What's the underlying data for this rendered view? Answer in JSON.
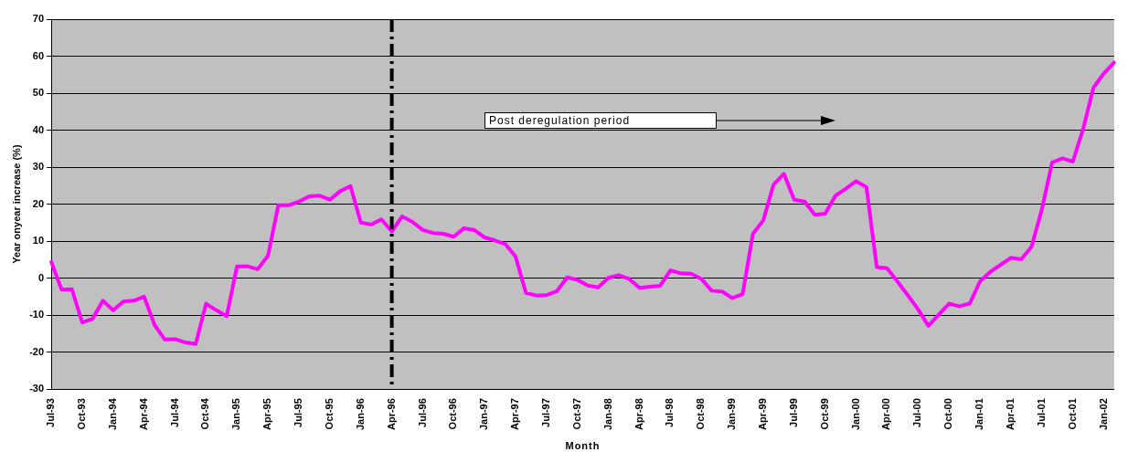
{
  "chart_data": {
    "type": "line",
    "xlabel": "Month",
    "ylabel": "Year onyear increase (%)",
    "categories": [
      "Jul-93",
      null,
      null,
      "Oct-93",
      null,
      null,
      "Jan-94",
      null,
      null,
      "Apr-94",
      null,
      null,
      "Jul-94",
      null,
      null,
      "Oct-94",
      null,
      null,
      "Jan-95",
      null,
      null,
      "Apr-95",
      null,
      null,
      "Jul-95",
      null,
      null,
      "Oct-95",
      null,
      null,
      "Jan-96",
      null,
      null,
      "Apr-96",
      null,
      null,
      "Jul-96",
      null,
      null,
      "Oct-96",
      null,
      null,
      "Jan-97",
      null,
      null,
      "Apr-97",
      null,
      null,
      "Jul-97",
      null,
      null,
      "Oct-97",
      null,
      null,
      "Jan-98",
      null,
      null,
      "Apr-98",
      null,
      null,
      "Jul-98",
      null,
      null,
      "Oct-98",
      null,
      null,
      "Jan-99",
      null,
      null,
      "Apr-99",
      null,
      null,
      "Jul-99",
      null,
      null,
      "Oct-99",
      null,
      null,
      "Jan-00",
      null,
      null,
      "Apr-00",
      null,
      null,
      "Jul-00",
      null,
      null,
      "Oct-00",
      null,
      null,
      "Jan-01",
      null,
      null,
      "Apr-01",
      null,
      null,
      "Jul-01",
      null,
      null,
      "Oct-01",
      null,
      null,
      "Jan-02",
      null
    ],
    "series": [
      {
        "color": "#ff00ff",
        "values": [
          4.4,
          -3.1,
          -3,
          -12,
          -11,
          -6.1,
          -8.7,
          -6.3,
          -6.1,
          -5,
          -12.6,
          -16.6,
          -16.5,
          -17.4,
          -17.8,
          -6.9,
          -8.7,
          -10.3,
          3.2,
          3.2,
          2.4,
          6,
          19.7,
          19.7,
          20.7,
          22.1,
          22.3,
          21.2,
          23.5,
          24.9,
          15,
          14.5,
          15.9,
          12.6,
          16.7,
          15.2,
          13,
          12.2,
          12,
          11.2,
          13.5,
          13,
          11,
          10.2,
          9.2,
          5.8,
          -4,
          -4.7,
          -4.6,
          -3.5,
          0.2,
          -0.5,
          -2,
          -2.5,
          0.1,
          0.8,
          -0.2,
          -2.6,
          -2.3,
          -2.1,
          2.1,
          1.3,
          1.2,
          -0.2,
          -3.4,
          -3.6,
          -5.4,
          -4.3,
          12,
          15.6,
          25.3,
          28.2,
          21.2,
          20.7,
          17.1,
          17.4,
          22.3,
          24.2,
          26.2,
          24.6,
          3,
          2.7,
          -0.9,
          -4.6,
          -8.4,
          -12.9,
          -9.9,
          -6.9,
          -7.6,
          -6.9,
          -0.9,
          1.7,
          3.6,
          5.5,
          5.1,
          8.5,
          18.6,
          31.3,
          32.4,
          31.5,
          40.3,
          51.5,
          55.3,
          58.3
        ]
      }
    ],
    "ylim": [
      -30,
      70
    ],
    "yticks": [
      -30,
      -20,
      -10,
      0,
      10,
      20,
      30,
      40,
      50,
      60,
      70
    ],
    "grid": "y",
    "legend": false,
    "marker": "none",
    "line_style": "solid",
    "ref_lines": [
      {
        "axis": "x",
        "value": "Apr-96",
        "color": "#000000",
        "line_style": "dashed"
      }
    ],
    "annotations": [
      "Post deregulation period"
    ]
  }
}
